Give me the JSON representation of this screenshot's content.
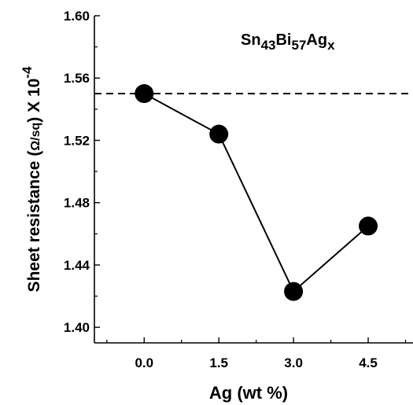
{
  "chart_data": {
    "type": "line",
    "title": "",
    "xlabel": "Ag (wt %)",
    "ylabel": {
      "main": "Sheet resistance (",
      "unit": "Ω/sq",
      "close": ") X 10",
      "exponent": "-4"
    },
    "x": [
      0.0,
      1.5,
      3.0,
      4.5
    ],
    "x_tick_labels": [
      "0.0",
      "1.5",
      "3.0",
      "4.5"
    ],
    "y_tick_labels": [
      "1.40",
      "1.44",
      "1.48",
      "1.52",
      "1.56",
      "1.60"
    ],
    "y_ticks": [
      1.4,
      1.44,
      1.48,
      1.52,
      1.56,
      1.6
    ],
    "xlim": [
      -1.0,
      5.4
    ],
    "ylim": [
      1.39,
      1.6
    ],
    "series": [
      {
        "values": [
          1.55,
          1.524,
          1.423,
          1.465
        ],
        "color": "#000000",
        "marker": "circle"
      }
    ],
    "reference_line": {
      "y": 1.55,
      "style": "dashed",
      "color": "#000000"
    },
    "annotation": {
      "parts": [
        {
          "text": "Sn",
          "shift": "base"
        },
        {
          "text": "43",
          "shift": "sub"
        },
        {
          "text": "Bi",
          "shift": "base"
        },
        {
          "text": "57",
          "shift": "sub"
        },
        {
          "text": "Ag",
          "shift": "base"
        },
        {
          "text": "x",
          "shift": "sub"
        }
      ]
    },
    "grid": false,
    "legend": "none"
  }
}
